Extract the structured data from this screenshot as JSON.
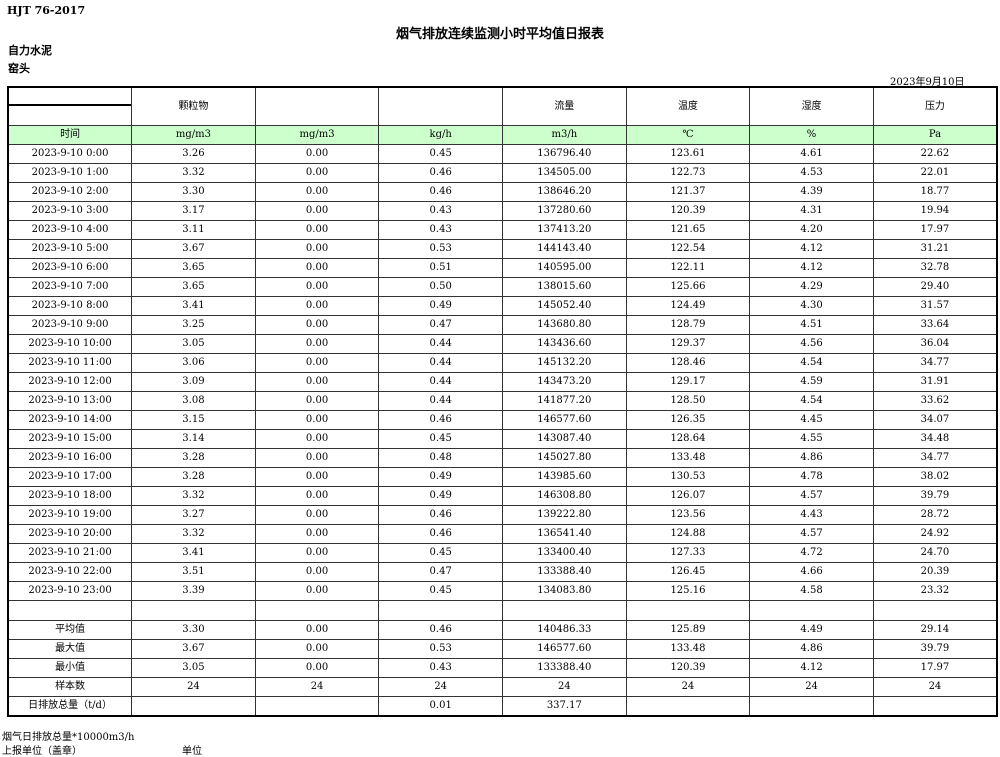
{
  "header": {
    "standard": "HJT  76-2017",
    "title": "烟气排放连续监测小时平均值日报表",
    "company": "自力水泥",
    "unit": "窑头",
    "date": "2023年9月10日"
  },
  "columns": {
    "names": [
      "",
      "颗粒物",
      "",
      "",
      "流量",
      "温度",
      "湿度",
      "压力"
    ],
    "units": [
      "时间",
      "mg/m3",
      "mg/m3",
      "kg/h",
      "m3/h",
      "℃",
      "%",
      "Pa"
    ]
  },
  "rows": [
    [
      "2023-9-10 0:00",
      "3.26",
      "0.00",
      "0.45",
      "136796.40",
      "123.61",
      "4.61",
      "22.62"
    ],
    [
      "2023-9-10 1:00",
      "3.32",
      "0.00",
      "0.46",
      "134505.00",
      "122.73",
      "4.53",
      "22.01"
    ],
    [
      "2023-9-10 2:00",
      "3.30",
      "0.00",
      "0.46",
      "138646.20",
      "121.37",
      "4.39",
      "18.77"
    ],
    [
      "2023-9-10 3:00",
      "3.17",
      "0.00",
      "0.43",
      "137280.60",
      "120.39",
      "4.31",
      "19.94"
    ],
    [
      "2023-9-10 4:00",
      "3.11",
      "0.00",
      "0.43",
      "137413.20",
      "121.65",
      "4.20",
      "17.97"
    ],
    [
      "2023-9-10 5:00",
      "3.67",
      "0.00",
      "0.53",
      "144143.40",
      "122.54",
      "4.12",
      "31.21"
    ],
    [
      "2023-9-10 6:00",
      "3.65",
      "0.00",
      "0.51",
      "140595.00",
      "122.11",
      "4.12",
      "32.78"
    ],
    [
      "2023-9-10 7:00",
      "3.65",
      "0.00",
      "0.50",
      "138015.60",
      "125.66",
      "4.29",
      "29.40"
    ],
    [
      "2023-9-10 8:00",
      "3.41",
      "0.00",
      "0.49",
      "145052.40",
      "124.49",
      "4.30",
      "31.57"
    ],
    [
      "2023-9-10 9:00",
      "3.25",
      "0.00",
      "0.47",
      "143680.80",
      "128.79",
      "4.51",
      "33.64"
    ],
    [
      "2023-9-10 10:00",
      "3.05",
      "0.00",
      "0.44",
      "143436.60",
      "129.37",
      "4.56",
      "36.04"
    ],
    [
      "2023-9-10 11:00",
      "3.06",
      "0.00",
      "0.44",
      "145132.20",
      "128.46",
      "4.54",
      "34.77"
    ],
    [
      "2023-9-10 12:00",
      "3.09",
      "0.00",
      "0.44",
      "143473.20",
      "129.17",
      "4.59",
      "31.91"
    ],
    [
      "2023-9-10 13:00",
      "3.08",
      "0.00",
      "0.44",
      "141877.20",
      "128.50",
      "4.54",
      "33.62"
    ],
    [
      "2023-9-10 14:00",
      "3.15",
      "0.00",
      "0.46",
      "146577.60",
      "126.35",
      "4.45",
      "34.07"
    ],
    [
      "2023-9-10 15:00",
      "3.14",
      "0.00",
      "0.45",
      "143087.40",
      "128.64",
      "4.55",
      "34.48"
    ],
    [
      "2023-9-10 16:00",
      "3.28",
      "0.00",
      "0.48",
      "145027.80",
      "133.48",
      "4.86",
      "34.77"
    ],
    [
      "2023-9-10 17:00",
      "3.28",
      "0.00",
      "0.49",
      "143985.60",
      "130.53",
      "4.78",
      "38.02"
    ],
    [
      "2023-9-10 18:00",
      "3.32",
      "0.00",
      "0.49",
      "146308.80",
      "126.07",
      "4.57",
      "39.79"
    ],
    [
      "2023-9-10 19:00",
      "3.27",
      "0.00",
      "0.46",
      "139222.80",
      "123.56",
      "4.43",
      "28.72"
    ],
    [
      "2023-9-10 20:00",
      "3.32",
      "0.00",
      "0.46",
      "136541.40",
      "124.88",
      "4.57",
      "24.92"
    ],
    [
      "2023-9-10 21:00",
      "3.41",
      "0.00",
      "0.45",
      "133400.40",
      "127.33",
      "4.72",
      "24.70"
    ],
    [
      "2023-9-10 22:00",
      "3.51",
      "0.00",
      "0.47",
      "133388.40",
      "126.45",
      "4.66",
      "20.39"
    ],
    [
      "2023-9-10 23:00",
      "3.39",
      "0.00",
      "0.45",
      "134083.80",
      "125.16",
      "4.58",
      "23.32"
    ]
  ],
  "summary": [
    [
      "平均值",
      "3.30",
      "0.00",
      "0.46",
      "140486.33",
      "125.89",
      "4.49",
      "29.14"
    ],
    [
      "最大值",
      "3.67",
      "0.00",
      "0.53",
      "146577.60",
      "133.48",
      "4.86",
      "39.79"
    ],
    [
      "最小值",
      "3.05",
      "0.00",
      "0.43",
      "133388.40",
      "120.39",
      "4.12",
      "17.97"
    ],
    [
      "样本数",
      "24",
      "24",
      "24",
      "24",
      "24",
      "24",
      "24"
    ],
    [
      "日排放总量（t/d）",
      "",
      "",
      "0.01",
      "337.17",
      "",
      "",
      ""
    ]
  ],
  "footer": {
    "note": "烟气日排放总量*10000m3/h",
    "reporter": "上报单位（盖章）",
    "unit_label": "单位"
  }
}
